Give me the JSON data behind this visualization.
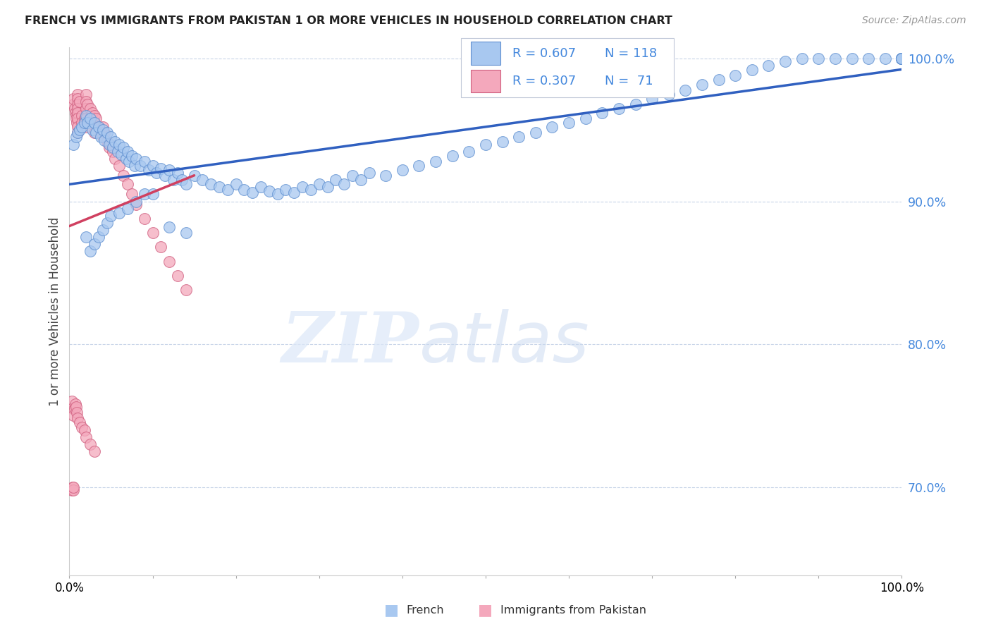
{
  "title": "FRENCH VS IMMIGRANTS FROM PAKISTAN 1 OR MORE VEHICLES IN HOUSEHOLD CORRELATION CHART",
  "source": "Source: ZipAtlas.com",
  "ylabel": "1 or more Vehicles in Household",
  "xlim": [
    0.0,
    1.0
  ],
  "ylim": [
    0.638,
    1.008
  ],
  "yticks": [
    0.7,
    0.8,
    0.9,
    1.0
  ],
  "ytick_labels": [
    "70.0%",
    "80.0%",
    "90.0%",
    "100.0%"
  ],
  "xtick_vals": [
    0.0,
    0.1,
    0.2,
    0.3,
    0.4,
    0.5,
    0.6,
    0.7,
    0.8,
    0.9,
    1.0
  ],
  "xtick_labels": [
    "0.0%",
    "",
    "",
    "",
    "",
    "",
    "",
    "",
    "",
    "",
    "100.0%"
  ],
  "french_color": "#a8c8f0",
  "pakistan_color": "#f4a8bc",
  "french_edge_color": "#6090d0",
  "pakistan_edge_color": "#d06080",
  "french_line_color": "#3060c0",
  "pakistan_line_color": "#d04060",
  "legend_R_french": "R = 0.607",
  "legend_N_french": "N = 118",
  "legend_R_pakistan": "R = 0.307",
  "legend_N_pakistan": "N =  71",
  "watermark_zip": "ZIP",
  "watermark_atlas": "atlas",
  "grid_color": "#c8d4e8",
  "french_x": [
    0.005,
    0.008,
    0.01,
    0.012,
    0.015,
    0.018,
    0.02,
    0.022,
    0.025,
    0.028,
    0.03,
    0.032,
    0.035,
    0.038,
    0.04,
    0.042,
    0.045,
    0.048,
    0.05,
    0.052,
    0.055,
    0.058,
    0.06,
    0.062,
    0.065,
    0.068,
    0.07,
    0.072,
    0.075,
    0.078,
    0.08,
    0.085,
    0.09,
    0.095,
    0.1,
    0.105,
    0.11,
    0.115,
    0.12,
    0.125,
    0.13,
    0.135,
    0.14,
    0.15,
    0.16,
    0.17,
    0.18,
    0.19,
    0.2,
    0.21,
    0.22,
    0.23,
    0.24,
    0.25,
    0.26,
    0.27,
    0.28,
    0.29,
    0.3,
    0.31,
    0.32,
    0.33,
    0.34,
    0.35,
    0.36,
    0.38,
    0.4,
    0.42,
    0.44,
    0.46,
    0.48,
    0.5,
    0.52,
    0.54,
    0.56,
    0.58,
    0.6,
    0.62,
    0.64,
    0.66,
    0.68,
    0.7,
    0.72,
    0.74,
    0.76,
    0.78,
    0.8,
    0.82,
    0.84,
    0.86,
    0.88,
    0.9,
    0.92,
    0.94,
    0.96,
    0.98,
    1.0,
    1.0,
    1.0,
    1.0,
    1.0,
    1.0,
    1.0,
    1.0,
    0.02,
    0.025,
    0.03,
    0.035,
    0.04,
    0.045,
    0.05,
    0.06,
    0.07,
    0.08,
    0.09,
    0.1,
    0.12,
    0.14
  ],
  "french_y": [
    0.94,
    0.945,
    0.948,
    0.95,
    0.952,
    0.955,
    0.96,
    0.955,
    0.958,
    0.95,
    0.955,
    0.948,
    0.952,
    0.945,
    0.95,
    0.943,
    0.948,
    0.94,
    0.945,
    0.938,
    0.942,
    0.935,
    0.94,
    0.933,
    0.938,
    0.93,
    0.935,
    0.928,
    0.932,
    0.925,
    0.93,
    0.925,
    0.928,
    0.922,
    0.925,
    0.92,
    0.923,
    0.918,
    0.922,
    0.915,
    0.92,
    0.915,
    0.912,
    0.918,
    0.915,
    0.912,
    0.91,
    0.908,
    0.912,
    0.908,
    0.906,
    0.91,
    0.907,
    0.905,
    0.908,
    0.906,
    0.91,
    0.908,
    0.912,
    0.91,
    0.915,
    0.912,
    0.918,
    0.915,
    0.92,
    0.918,
    0.922,
    0.925,
    0.928,
    0.932,
    0.935,
    0.94,
    0.942,
    0.945,
    0.948,
    0.952,
    0.955,
    0.958,
    0.962,
    0.965,
    0.968,
    0.972,
    0.975,
    0.978,
    0.982,
    0.985,
    0.988,
    0.992,
    0.995,
    0.998,
    1.0,
    1.0,
    1.0,
    1.0,
    1.0,
    1.0,
    1.0,
    1.0,
    1.0,
    1.0,
    1.0,
    1.0,
    1.0,
    1.0,
    0.875,
    0.865,
    0.87,
    0.875,
    0.88,
    0.885,
    0.89,
    0.892,
    0.895,
    0.9,
    0.905,
    0.905,
    0.882,
    0.878
  ],
  "pakistan_x": [
    0.003,
    0.004,
    0.005,
    0.005,
    0.005,
    0.005,
    0.006,
    0.007,
    0.008,
    0.008,
    0.009,
    0.01,
    0.01,
    0.01,
    0.01,
    0.01,
    0.01,
    0.01,
    0.01,
    0.012,
    0.015,
    0.015,
    0.018,
    0.02,
    0.02,
    0.02,
    0.02,
    0.02,
    0.022,
    0.025,
    0.025,
    0.028,
    0.03,
    0.03,
    0.03,
    0.032,
    0.035,
    0.038,
    0.04,
    0.04,
    0.042,
    0.045,
    0.048,
    0.05,
    0.052,
    0.055,
    0.06,
    0.065,
    0.07,
    0.075,
    0.08,
    0.09,
    0.1,
    0.11,
    0.12,
    0.13,
    0.14,
    0.003,
    0.004,
    0.005,
    0.006,
    0.007,
    0.008,
    0.009,
    0.01,
    0.012,
    0.015,
    0.018,
    0.02,
    0.025,
    0.03
  ],
  "pakistan_y": [
    0.698,
    0.7,
    0.698,
    0.7,
    0.968,
    0.972,
    0.965,
    0.962,
    0.96,
    0.958,
    0.955,
    0.975,
    0.972,
    0.968,
    0.965,
    0.962,
    0.958,
    0.952,
    0.948,
    0.97,
    0.96,
    0.955,
    0.958,
    0.975,
    0.97,
    0.965,
    0.958,
    0.952,
    0.968,
    0.965,
    0.958,
    0.962,
    0.96,
    0.955,
    0.948,
    0.958,
    0.952,
    0.948,
    0.952,
    0.945,
    0.948,
    0.942,
    0.938,
    0.94,
    0.935,
    0.93,
    0.925,
    0.918,
    0.912,
    0.905,
    0.898,
    0.888,
    0.878,
    0.868,
    0.858,
    0.848,
    0.838,
    0.76,
    0.755,
    0.75,
    0.755,
    0.758,
    0.756,
    0.752,
    0.748,
    0.745,
    0.742,
    0.74,
    0.735,
    0.73,
    0.725
  ]
}
